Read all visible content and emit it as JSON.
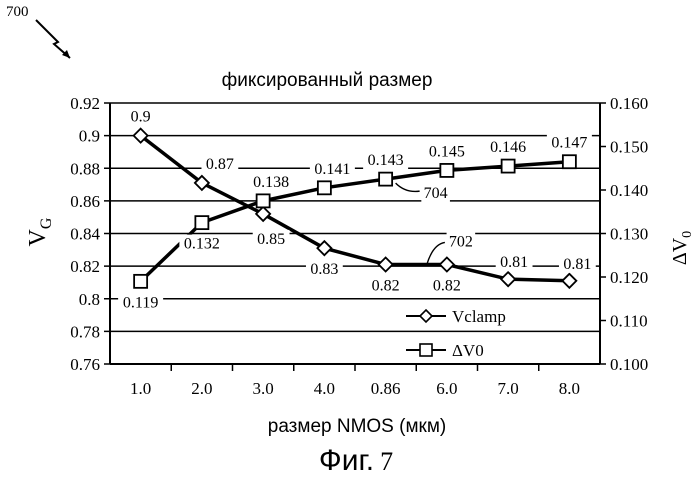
{
  "figure": {
    "ref_number": "700",
    "caption_word": "Фиг.",
    "caption_number": "7"
  },
  "chart_data": {
    "type": "line",
    "title": "фиксированный размер",
    "xlabel": "размер NMOS (мкм)",
    "ylabel_left": "V",
    "ylabel_left_sub": "G",
    "ylabel_right": "ΔV",
    "ylabel_right_sub": "0",
    "categories": [
      "1.0",
      "2.0",
      "3.0",
      "4.0",
      "0.86",
      "6.0",
      "7.0",
      "8.0"
    ],
    "left_axis": {
      "ylim": [
        0.76,
        0.92
      ],
      "ticks": [
        "0.76",
        "0.78",
        "0.8",
        "0.82",
        "0.84",
        "0.86",
        "0.88",
        "0.9",
        "0.92"
      ]
    },
    "right_axis": {
      "ylim": [
        0.1,
        0.16
      ],
      "ticks": [
        "0.100",
        "0.110",
        "0.120",
        "0.130",
        "0.140",
        "0.150",
        "0.160"
      ]
    },
    "grid": true,
    "legend_placement": "bottom-right",
    "series": [
      {
        "name": "Vclamp",
        "axis": "left",
        "marker": "diamond",
        "ref": "702",
        "values": [
          0.9,
          0.871,
          0.852,
          0.831,
          0.821,
          0.821,
          0.812,
          0.811
        ],
        "labels": [
          "0.9",
          "0.87",
          "0.85",
          "0.83",
          "0.82",
          "0.82",
          "0.81",
          "0.81"
        ]
      },
      {
        "name": "ΔV0",
        "axis": "right",
        "marker": "square",
        "ref": "704",
        "values": [
          0.119,
          0.1325,
          0.1375,
          0.1405,
          0.1425,
          0.1445,
          0.1455,
          0.1465
        ],
        "labels": [
          "0.119",
          "0.132",
          "0.138",
          "0.141",
          "0.143",
          "0.145",
          "0.146",
          "0.147"
        ]
      }
    ]
  }
}
